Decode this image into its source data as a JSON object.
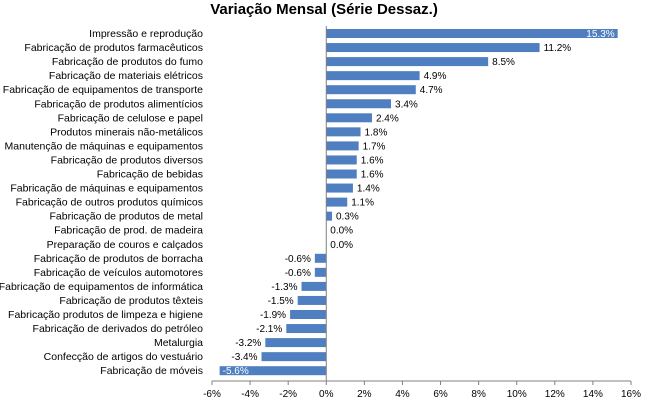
{
  "chart_data": {
    "type": "bar",
    "orientation": "horizontal",
    "title": "Variação Mensal (Série Dessaz.)",
    "xlabel": "",
    "ylabel": "",
    "xlim": [
      -6,
      16
    ],
    "xticks": [
      -6,
      -4,
      -2,
      0,
      2,
      4,
      6,
      8,
      10,
      12,
      14,
      16
    ],
    "xtick_labels": [
      "-6%",
      "-4%",
      "-2%",
      "0%",
      "2%",
      "4%",
      "6%",
      "8%",
      "10%",
      "12%",
      "14%",
      "16%"
    ],
    "grid": false,
    "legend": "none",
    "bar_color": "#4f7fc0",
    "categories": [
      "Impressão e reprodução",
      "Fabricação de produtos farmacêuticos",
      "Fabricação de produtos do fumo",
      "Fabricação de materiais elétricos",
      "Fabricação de equipamentos de transporte",
      "Fabricação de produtos alimentícios",
      "Fabricação de celulose e papel",
      "Produtos minerais não-metálicos",
      "Manutenção de máquinas e equipamentos",
      "Fabricação de produtos diversos",
      "Fabricação de bebidas",
      "Fabricação de máquinas e equipamentos",
      "Fabricação de outros produtos químicos",
      "Fabricação de produtos de metal",
      "Fabricação de prod. de madeira",
      "Preparação de couros e calçados",
      "Fabricação de produtos de borracha",
      "Fabricação de veículos automotores",
      "Fabricação de equipamentos de informática",
      "Fabricação de produtos têxteis",
      "Fabricação produtos de limpeza e higiene",
      "Fabricação de derivados do petróleo",
      "Metalurgia",
      "Confecção de artigos do vestuário",
      "Fabricação de móveis"
    ],
    "values": [
      15.3,
      11.2,
      8.5,
      4.9,
      4.7,
      3.4,
      2.4,
      1.8,
      1.7,
      1.6,
      1.6,
      1.4,
      1.1,
      0.3,
      0.0,
      0.0,
      -0.6,
      -0.6,
      -1.3,
      -1.5,
      -1.9,
      -2.1,
      -3.2,
      -3.4,
      -5.6
    ],
    "value_labels": [
      "15.3%",
      "11.2%",
      "8.5%",
      "4.9%",
      "4.7%",
      "3.4%",
      "2.4%",
      "1.8%",
      "1.7%",
      "1.6%",
      "1.6%",
      "1.4%",
      "1.1%",
      "0.3%",
      "0.0%",
      "0.0%",
      "-0.6%",
      "-0.6%",
      "-1.3%",
      "-1.5%",
      "-1.9%",
      "-2.1%",
      "-3.2%",
      "-3.4%",
      "-5.6%"
    ]
  }
}
